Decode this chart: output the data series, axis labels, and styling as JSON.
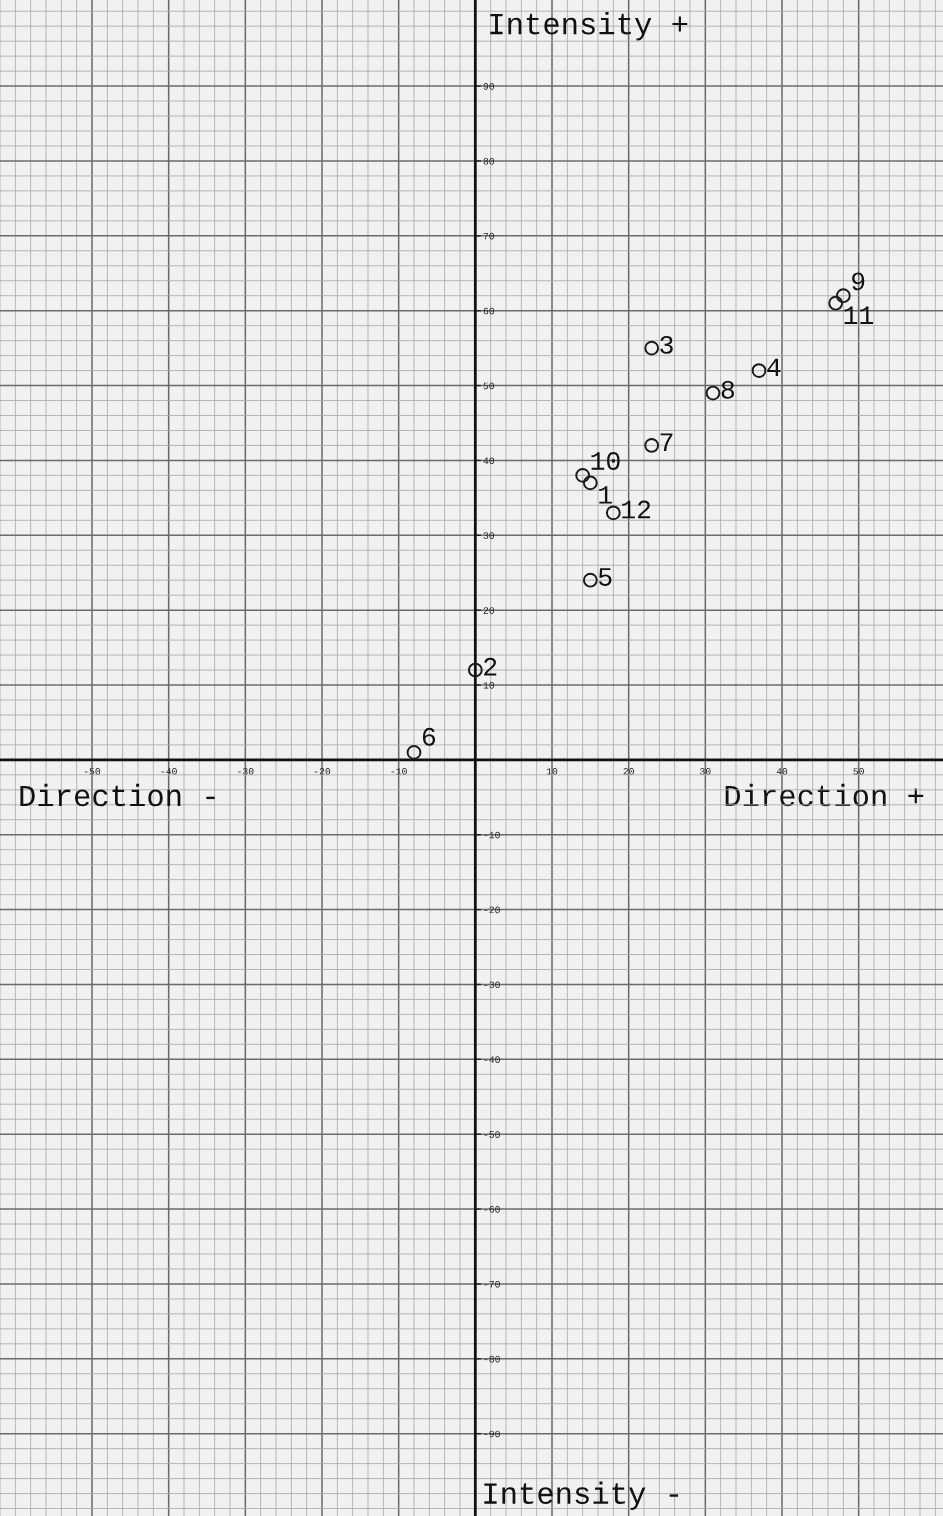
{
  "chart_data": {
    "type": "scatter",
    "xlabel": "Direction +",
    "ylabel": "Intensity +",
    "annotations": [
      "Direction -",
      "Intensity -",
      {
        "text": "1",
        "x": 15,
        "y": 37
      },
      {
        "text": "2",
        "x": 0,
        "y": 12
      },
      {
        "text": "3",
        "x": 23,
        "y": 55
      },
      {
        "text": "4",
        "x": 37,
        "y": 52
      },
      {
        "text": "5",
        "x": 15,
        "y": 24
      },
      {
        "text": "6",
        "x": -8,
        "y": 1
      },
      {
        "text": "7",
        "x": 23,
        "y": 42
      },
      {
        "text": "8",
        "x": 31,
        "y": 49
      },
      {
        "text": "9",
        "x": 48,
        "y": 62
      },
      {
        "text": "10",
        "x": 14,
        "y": 38
      },
      {
        "text": "11",
        "x": 47,
        "y": 61
      },
      {
        "text": "12",
        "x": 18,
        "y": 33
      }
    ],
    "x": [
      15,
      0,
      23,
      37,
      15,
      -8,
      23,
      31,
      48,
      14,
      47,
      18
    ],
    "series": [
      {
        "color": "#1a1a1a",
        "values": [
          37,
          12,
          55,
          52,
          24,
          1,
          42,
          49,
          62,
          38,
          61,
          33
        ]
      }
    ],
    "marker": "circle",
    "xlim": [
      -62,
      61
    ],
    "ylim": [
      -101,
      101.5
    ],
    "xticks": [
      -50,
      -40,
      -30,
      -20,
      -10,
      10,
      20,
      30,
      40,
      50
    ],
    "yticks": [
      -90,
      -80,
      -70,
      -60,
      -50,
      -40,
      -30,
      -20,
      -10,
      10,
      20,
      30,
      40,
      50,
      60,
      70,
      80,
      90
    ],
    "grid": true
  }
}
